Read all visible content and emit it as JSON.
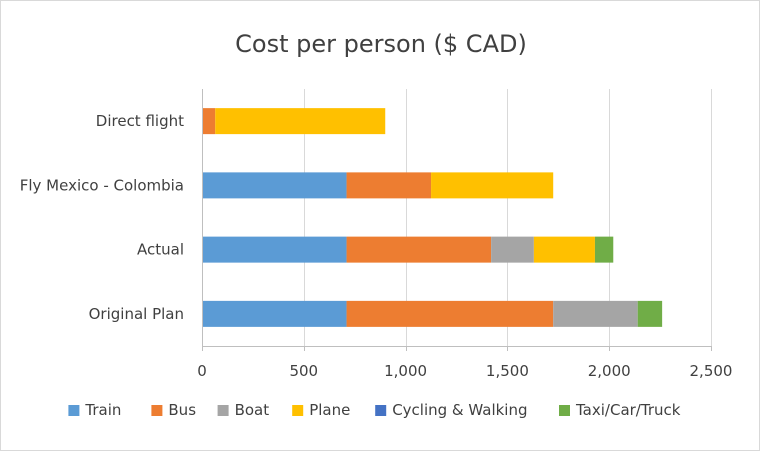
{
  "chart_data": {
    "type": "bar",
    "orientation": "horizontal",
    "stacked": true,
    "title": "Cost per person ($ CAD)",
    "categories": [
      "Original Plan",
      "Actual",
      "Fly Mexico - Colombia",
      "Direct flight"
    ],
    "series": [
      {
        "name": "Train",
        "color": "#5b9bd5",
        "values": [
          710,
          710,
          710,
          0
        ]
      },
      {
        "name": "Bus",
        "color": "#ed7d31",
        "values": [
          1015,
          710,
          415,
          65
        ]
      },
      {
        "name": "Boat",
        "color": "#a5a5a5",
        "values": [
          415,
          210,
          0,
          0
        ]
      },
      {
        "name": "Plane",
        "color": "#ffc000",
        "values": [
          0,
          300,
          600,
          835
        ]
      },
      {
        "name": "Cycling & Walking",
        "color": "#4472c4",
        "values": [
          0,
          0,
          0,
          0
        ]
      },
      {
        "name": "Taxi/Car/Truck",
        "color": "#70ad47",
        "values": [
          120,
          90,
          0,
          0
        ]
      }
    ],
    "xlim": [
      0,
      2500
    ],
    "xticks": [
      0,
      500,
      1000,
      1500,
      2000,
      2500
    ],
    "xtick_labels": [
      "0",
      "500",
      "1,000",
      "1,500",
      "2,000",
      "2,500"
    ],
    "grid": true,
    "legend_position": "bottom"
  }
}
